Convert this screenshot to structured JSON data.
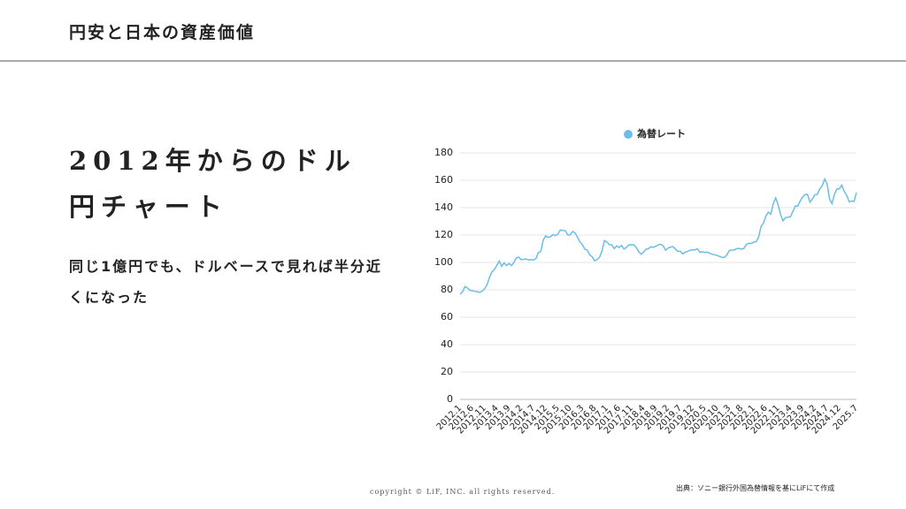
{
  "header": {
    "title": "円安と日本の資産価値"
  },
  "heading": "2012年からのドル円チャート",
  "body": "同じ1億円でも、ドルベースで見れば半分近くになった",
  "footer": {
    "copyright": "copyright © LiF, INC. all rights reserved.",
    "source": "出典：ソニー銀行外国為替情報を基にLiFにて作成"
  },
  "chart_data": {
    "type": "line",
    "categories": [
      "2012.1",
      null,
      null,
      null,
      null,
      "2012.6",
      null,
      null,
      null,
      null,
      "2012.11",
      null,
      null,
      null,
      null,
      "2013.4",
      null,
      null,
      null,
      null,
      "2013.9",
      null,
      null,
      null,
      null,
      "2014.2",
      null,
      null,
      null,
      null,
      "2014.7",
      null,
      null,
      null,
      null,
      "2014.12",
      null,
      null,
      null,
      null,
      "2015.5",
      null,
      null,
      null,
      null,
      "2015.10",
      null,
      null,
      null,
      null,
      "2016.3",
      null,
      null,
      null,
      null,
      "2016.8",
      null,
      null,
      null,
      null,
      "2017.1",
      null,
      null,
      null,
      null,
      "2017.6",
      null,
      null,
      null,
      null,
      "2017.11",
      null,
      null,
      null,
      null,
      "2018.4",
      null,
      null,
      null,
      null,
      "2018.9",
      null,
      null,
      null,
      null,
      "2019.2",
      null,
      null,
      null,
      null,
      "2019.7",
      null,
      null,
      null,
      null,
      "2019.12",
      null,
      null,
      null,
      null,
      "2020.5",
      null,
      null,
      null,
      null,
      "2020.10",
      null,
      null,
      null,
      null,
      "2021.3",
      null,
      null,
      null,
      null,
      "2021.8",
      null,
      null,
      null,
      null,
      "2022.1",
      null,
      null,
      null,
      null,
      "2022.6",
      null,
      null,
      null,
      null,
      "2022.11",
      null,
      null,
      null,
      null,
      "2023.4",
      null,
      null,
      null,
      null,
      "2023.9",
      null,
      null,
      null,
      null,
      "2024.2",
      null,
      null,
      null,
      null,
      "2024.7",
      null,
      null,
      null,
      null,
      "2024.12",
      null,
      null,
      null,
      null,
      null,
      null,
      "2025.7"
    ],
    "series": [
      {
        "name": "為替レート",
        "color": "#6cbde9",
        "values": [
          76.9,
          78.5,
          82.4,
          81.4,
          79.7,
          79.3,
          78.9,
          78.6,
          78.2,
          79.0,
          80.8,
          83.6,
          89.1,
          93.1,
          94.8,
          97.8,
          101.0,
          97.2,
          99.7,
          97.8,
          99.2,
          97.8,
          100.0,
          103.4,
          103.9,
          102.0,
          102.3,
          102.5,
          101.8,
          102.1,
          101.8,
          102.9,
          107.2,
          108.0,
          116.4,
          119.4,
          118.3,
          118.8,
          120.4,
          119.5,
          120.8,
          123.7,
          123.3,
          123.2,
          120.1,
          120.1,
          122.6,
          121.6,
          118.3,
          115.0,
          112.9,
          109.6,
          109.0,
          105.4,
          104.1,
          101.3,
          102.1,
          103.8,
          108.4,
          116.0,
          114.9,
          113.0,
          112.9,
          110.1,
          112.2,
          110.9,
          112.4,
          109.8,
          111.0,
          112.9,
          112.8,
          112.9,
          110.9,
          107.9,
          106.0,
          107.6,
          109.7,
          110.1,
          111.5,
          111.0,
          111.9,
          112.8,
          113.3,
          112.2,
          108.9,
          110.5,
          111.2,
          111.6,
          109.8,
          108.1,
          108.2,
          106.2,
          107.5,
          108.1,
          108.9,
          109.1,
          109.3,
          110.0,
          107.5,
          107.8,
          107.3,
          107.6,
          106.7,
          106.0,
          105.6,
          105.2,
          104.4,
          103.8,
          103.7,
          105.4,
          108.7,
          109.0,
          109.1,
          110.1,
          110.2,
          109.8,
          110.2,
          113.1,
          114.0,
          113.9,
          114.8,
          115.2,
          118.5,
          126.1,
          128.8,
          133.9,
          136.7,
          135.2,
          143.1,
          147.1,
          142.0,
          134.9,
          130.4,
          132.7,
          133.1,
          133.3,
          137.1,
          141.2,
          141.1,
          144.9,
          147.8,
          149.6,
          149.7,
          144.0,
          146.3,
          149.5,
          149.7,
          153.7,
          155.9,
          160.9,
          157.5,
          146.3,
          143.0,
          149.7,
          153.7,
          153.7,
          156.5,
          151.9,
          149.1,
          144.3,
          144.9,
          144.5,
          151.0
        ]
      }
    ],
    "ylim": [
      0,
      180
    ],
    "yticks": [
      0,
      20,
      40,
      60,
      80,
      100,
      120,
      140,
      160,
      180
    ],
    "grid": true,
    "legend": "top"
  }
}
